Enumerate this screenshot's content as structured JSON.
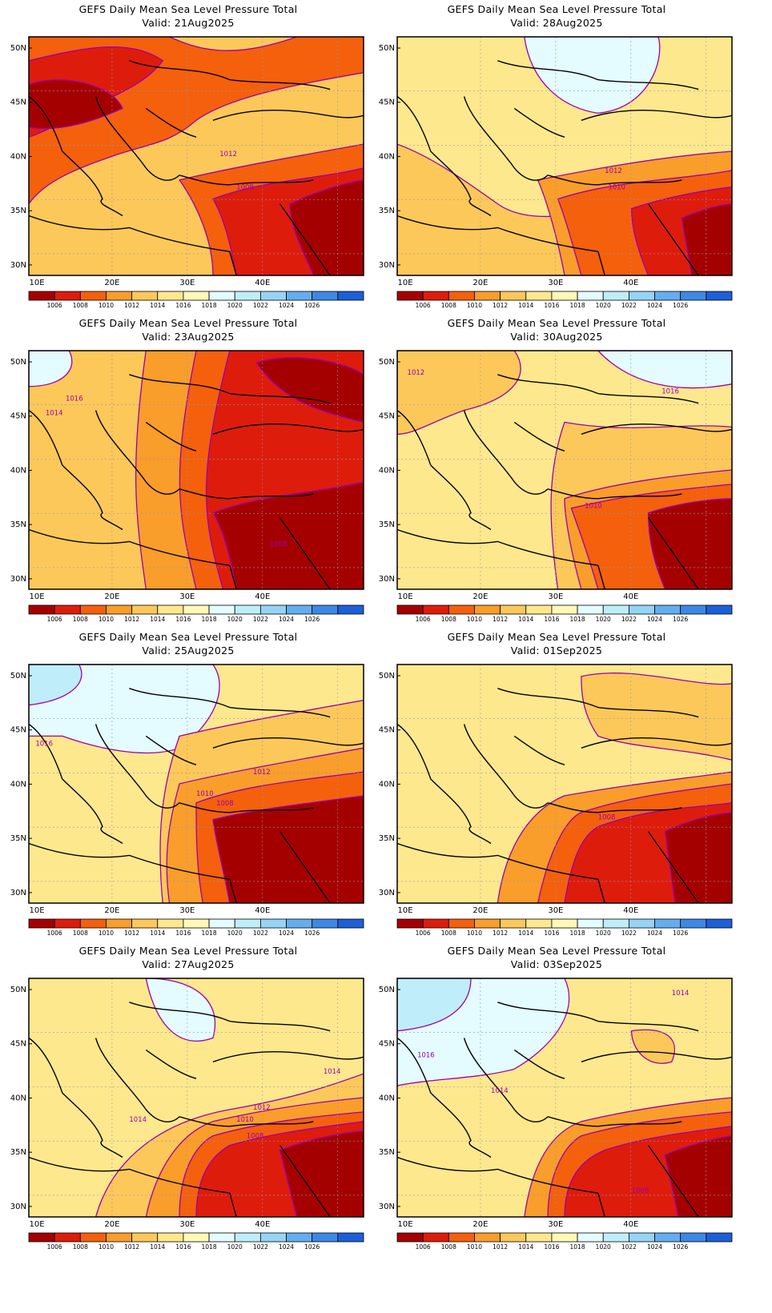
{
  "figure": {
    "legend_levels": [
      "1006",
      "1008",
      "1010",
      "1012",
      "1014",
      "1016",
      "1018",
      "1020",
      "1022",
      "1024",
      "1026"
    ],
    "legend_colors": [
      "#a50000",
      "#de1c0c",
      "#f4600c",
      "#f99d2b",
      "#fdc85a",
      "#fee88e",
      "#fff8b7",
      "#e4fbff",
      "#bfeefa",
      "#96d4f6",
      "#64aef0",
      "#3d88e6",
      "#1d5fd8"
    ],
    "x_ticks": [
      "10E",
      "20E",
      "30E",
      "40E"
    ],
    "y_ticks": [
      "50N",
      "45N",
      "40N",
      "35N",
      "30N"
    ],
    "contour_color": "#9b00b0"
  },
  "panels": [
    {
      "title": "GEFS Daily Mean Sea Level Pressure Total",
      "valid": "Valid: 21Aug2025",
      "variant": 0,
      "contour_labels": [
        {
          "text": "1012"
        },
        {
          "text": "1008"
        }
      ]
    },
    {
      "title": "GEFS Daily Mean Sea Level Pressure Total",
      "valid": "Valid: 28Aug2025",
      "variant": 1,
      "contour_labels": [
        {
          "text": "1012"
        },
        {
          "text": "1010"
        }
      ]
    },
    {
      "title": "GEFS Daily Mean Sea Level Pressure Total",
      "valid": "Valid: 23Aug2025",
      "variant": 2,
      "contour_labels": [
        {
          "text": "1016"
        },
        {
          "text": "1014"
        },
        {
          "text": "1008"
        }
      ]
    },
    {
      "title": "GEFS Daily Mean Sea Level Pressure Total",
      "valid": "Valid: 30Aug2025",
      "variant": 3,
      "contour_labels": [
        {
          "text": "1012"
        },
        {
          "text": "1016"
        },
        {
          "text": "1010"
        }
      ]
    },
    {
      "title": "GEFS Daily Mean Sea Level Pressure Total",
      "valid": "Valid: 25Aug2025",
      "variant": 4,
      "contour_labels": [
        {
          "text": "1016"
        },
        {
          "text": "1012"
        },
        {
          "text": "1010"
        },
        {
          "text": "1008"
        }
      ]
    },
    {
      "title": "GEFS Daily Mean Sea Level Pressure Total",
      "valid": "Valid: 01Sep2025",
      "variant": 5,
      "contour_labels": [
        {
          "text": "1008"
        }
      ]
    },
    {
      "title": "GEFS Daily Mean Sea Level Pressure Total",
      "valid": "Valid: 27Aug2025",
      "variant": 6,
      "contour_labels": [
        {
          "text": "1014"
        },
        {
          "text": "1012"
        },
        {
          "text": "1014"
        },
        {
          "text": "1010"
        },
        {
          "text": "1008"
        }
      ]
    },
    {
      "title": "GEFS Daily Mean Sea Level Pressure Total",
      "valid": "Valid: 03Sep2025",
      "variant": 7,
      "contour_labels": [
        {
          "text": "1014"
        },
        {
          "text": "1016"
        },
        {
          "text": "1014"
        },
        {
          "text": "1008"
        }
      ]
    }
  ]
}
